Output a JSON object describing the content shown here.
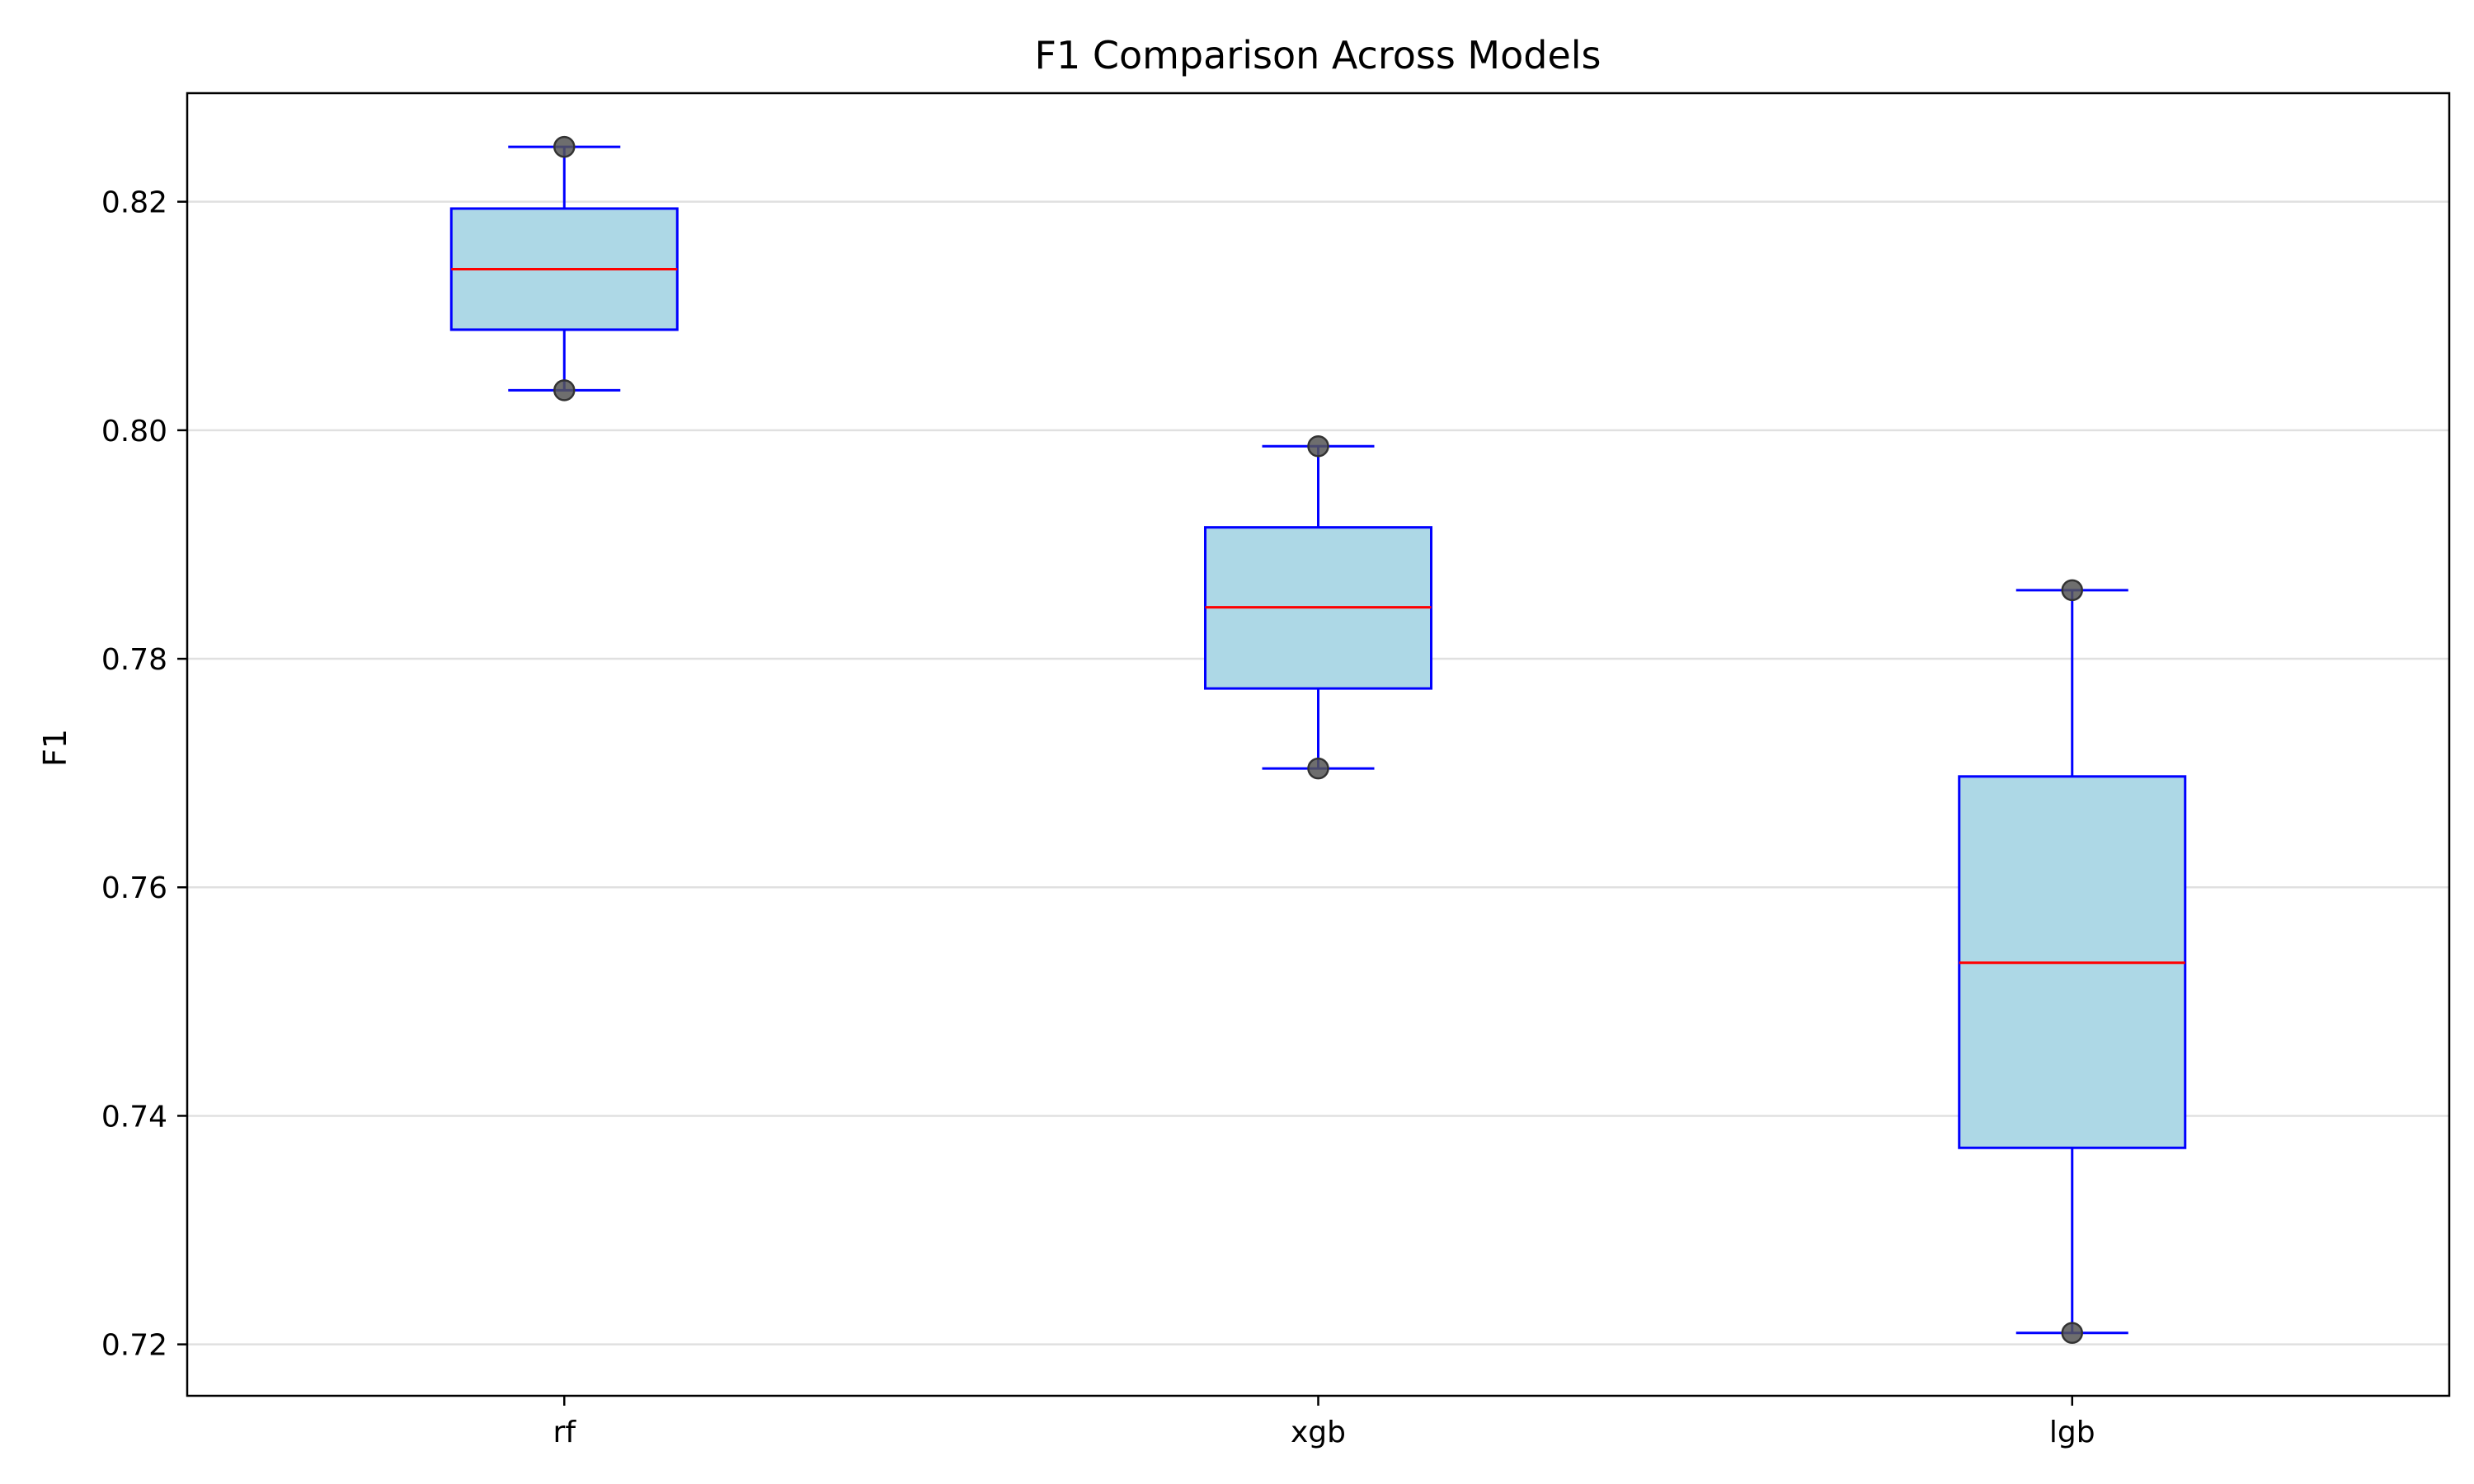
{
  "chart_data": {
    "type": "box",
    "title": "F1 Comparison Across Models",
    "xlabel": "",
    "ylabel": "F1",
    "ylim": [
      0.7155,
      0.8295
    ],
    "yticks": [
      0.72,
      0.74,
      0.76,
      0.78,
      0.8,
      0.82
    ],
    "ytick_labels": [
      "0.72",
      "0.74",
      "0.76",
      "0.78",
      "0.80",
      "0.82"
    ],
    "grid": "horizontal",
    "categories": [
      "rf",
      "xgb",
      "lgb"
    ],
    "boxes": [
      {
        "label": "rf",
        "whisker_low": 0.8035,
        "q1": 0.8088,
        "median": 0.8141,
        "q3": 0.8194,
        "whisker_high": 0.8248
      },
      {
        "label": "xgb",
        "whisker_low": 0.7704,
        "q1": 0.7774,
        "median": 0.7845,
        "q3": 0.7915,
        "whisker_high": 0.7986
      },
      {
        "label": "lgb",
        "whisker_low": 0.721,
        "q1": 0.7372,
        "median": 0.7534,
        "q3": 0.7697,
        "whisker_high": 0.786
      }
    ],
    "points": [
      {
        "label": "rf",
        "values": [
          0.8248,
          0.8035
        ]
      },
      {
        "label": "xgb",
        "values": [
          0.7986,
          0.7704
        ]
      },
      {
        "label": "lgb",
        "values": [
          0.786,
          0.721
        ]
      }
    ],
    "colors": {
      "box_fill": "#add8e6",
      "box_edge": "#0000ff",
      "median": "#ff0000",
      "whisker": "#0000ff",
      "point": "#555555",
      "grid": "#e0e0e0",
      "axes": "#000000"
    }
  }
}
